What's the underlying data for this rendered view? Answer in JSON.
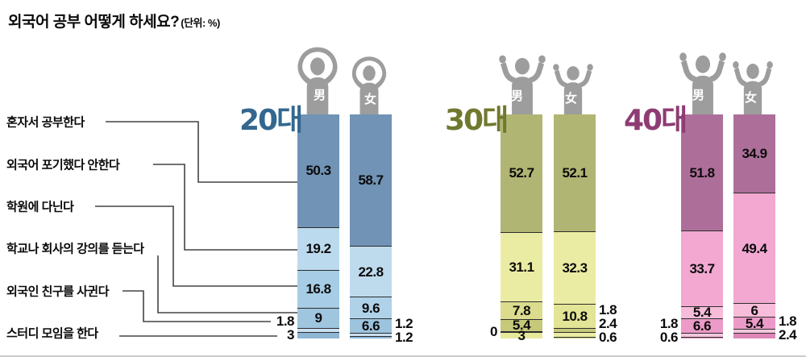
{
  "title": {
    "main": "외국어 공부 어떻게 하세요?",
    "unit": "(단위: %)"
  },
  "categories": [
    {
      "label": "혼자서 공부한다"
    },
    {
      "label": "외국어 포기했다 안한다"
    },
    {
      "label": "학원에 다닌다"
    },
    {
      "label": "학교나 회사의 강의를 듣는다"
    },
    {
      "label": "외국인 친구를 사귄다"
    },
    {
      "label": "스터디 모임을 한다"
    }
  ],
  "figure_color": "#9d9d9d",
  "groups": [
    {
      "name": "20대",
      "color": "#33678f",
      "bars": [
        {
          "gender": "男",
          "segments": [
            {
              "value": 50.3,
              "label": "50.3",
              "color": "#7093b6",
              "labelPos": "in"
            },
            {
              "value": 19.2,
              "label": "19.2",
              "color": "#bcdaee",
              "labelPos": "in"
            },
            {
              "value": 16.8,
              "label": "16.8",
              "color": "#a7cde6",
              "labelPos": "in"
            },
            {
              "value": 9,
              "label": "9",
              "color": "#9fc5df",
              "labelPos": "in"
            },
            {
              "value": 1.8,
              "label": "1.8",
              "color": "#c9e0f1",
              "labelPos": "left"
            },
            {
              "value": 3,
              "label": "3",
              "color": "#8fb6d3",
              "labelPos": "left"
            }
          ]
        },
        {
          "gender": "女",
          "segments": [
            {
              "value": 58.7,
              "label": "58.7",
              "color": "#7093b6",
              "labelPos": "in"
            },
            {
              "value": 22.8,
              "label": "22.8",
              "color": "#bedbee",
              "labelPos": "in"
            },
            {
              "value": 9.6,
              "label": "9.6",
              "color": "#b0d2e9",
              "labelPos": "in"
            },
            {
              "value": 6.6,
              "label": "6.6",
              "color": "#9dc4de",
              "labelPos": "in"
            },
            {
              "value": 1.2,
              "label": "1.2",
              "color": "#c9e0f1",
              "labelPos": "right"
            },
            {
              "value": 1.2,
              "label": "1.2",
              "color": "#8fb6d3",
              "labelPos": "right"
            }
          ]
        }
      ]
    },
    {
      "name": "30대",
      "color": "#71782f",
      "bars": [
        {
          "gender": "男",
          "segments": [
            {
              "value": 52.7,
              "label": "52.7",
              "color": "#b1b573",
              "labelPos": "in"
            },
            {
              "value": 31.1,
              "label": "31.1",
              "color": "#ebeca3",
              "labelPos": "in"
            },
            {
              "value": 7.8,
              "label": "7.8",
              "color": "#dbdc8e",
              "labelPos": "in"
            },
            {
              "value": 5.4,
              "label": "5.4",
              "color": "#c6c87a",
              "labelPos": "in"
            },
            {
              "value": 0,
              "label": "0",
              "color": "#ebeca3",
              "labelPos": "left"
            },
            {
              "value": 3,
              "label": "3",
              "color": "#e6e89b",
              "labelPos": "in"
            }
          ]
        },
        {
          "gender": "女",
          "segments": [
            {
              "value": 52.1,
              "label": "52.1",
              "color": "#b1b573",
              "labelPos": "in"
            },
            {
              "value": 32.3,
              "label": "32.3",
              "color": "#ebeca3",
              "labelPos": "in"
            },
            {
              "value": 10.8,
              "label": "10.8",
              "color": "#e2e496",
              "labelPos": "in"
            },
            {
              "value": 1.8,
              "label": "1.8",
              "color": "#c6c87a",
              "labelPos": "right"
            },
            {
              "value": 2.4,
              "label": "2.4",
              "color": "#ebeca3",
              "labelPos": "right"
            },
            {
              "value": 0.6,
              "label": "0.6",
              "color": "#c6c87a",
              "labelPos": "right"
            }
          ]
        }
      ]
    },
    {
      "name": "40대",
      "color": "#8e3c74",
      "bars": [
        {
          "gender": "男",
          "segments": [
            {
              "value": 51.8,
              "label": "51.8",
              "color": "#ad6f99",
              "labelPos": "in"
            },
            {
              "value": 33.7,
              "label": "33.7",
              "color": "#f2a8d1",
              "labelPos": "in"
            },
            {
              "value": 5.4,
              "label": "5.4",
              "color": "#f6bcd9",
              "labelPos": "in"
            },
            {
              "value": 6.6,
              "label": "6.6",
              "color": "#ec9ac8",
              "labelPos": "in"
            },
            {
              "value": 1.8,
              "label": "1.8",
              "color": "#f6c6de",
              "labelPos": "left"
            },
            {
              "value": 0.6,
              "label": "0.6",
              "color": "#df86b8",
              "labelPos": "left"
            }
          ]
        },
        {
          "gender": "女",
          "segments": [
            {
              "value": 34.9,
              "label": "34.9",
              "color": "#ad6f99",
              "labelPos": "in"
            },
            {
              "value": 49.4,
              "label": "49.4",
              "color": "#f2a8d1",
              "labelPos": "in"
            },
            {
              "value": 6,
              "label": "6",
              "color": "#f6bcd9",
              "labelPos": "in"
            },
            {
              "value": 5.4,
              "label": "5.4",
              "color": "#ec9ac8",
              "labelPos": "in"
            },
            {
              "value": 1.8,
              "label": "1.8",
              "color": "#f6c6de",
              "labelPos": "right"
            },
            {
              "value": 2.4,
              "label": "2.4",
              "color": "#df86b8",
              "labelPos": "right"
            }
          ]
        }
      ]
    }
  ],
  "chart_data": {
    "type": "bar",
    "stacked": true,
    "title": "외국어 공부 어떻게 하세요?",
    "unit": "%",
    "ylim": [
      0,
      100
    ],
    "grid": false,
    "legend_position": "none",
    "categories": [
      "혼자서 공부한다",
      "외국어 포기했다 안한다",
      "학원에 다닌다",
      "학교나 회사의 강의를 듣는다",
      "외국인 친구를 사귄다",
      "스터디 모임을 한다"
    ],
    "series": [
      {
        "name": "20대 男",
        "values": [
          50.3,
          19.2,
          16.8,
          9,
          1.8,
          3
        ]
      },
      {
        "name": "20대 女",
        "values": [
          58.7,
          22.8,
          9.6,
          6.6,
          1.2,
          1.2
        ]
      },
      {
        "name": "30대 男",
        "values": [
          52.7,
          31.1,
          7.8,
          5.4,
          0,
          3
        ]
      },
      {
        "name": "30대 女",
        "values": [
          52.1,
          32.3,
          10.8,
          1.8,
          2.4,
          0.6
        ]
      },
      {
        "name": "40대 男",
        "values": [
          51.8,
          33.7,
          5.4,
          6.6,
          1.8,
          0.6
        ]
      },
      {
        "name": "40대 女",
        "values": [
          34.9,
          49.4,
          6,
          5.4,
          1.8,
          2.4
        ]
      }
    ]
  }
}
